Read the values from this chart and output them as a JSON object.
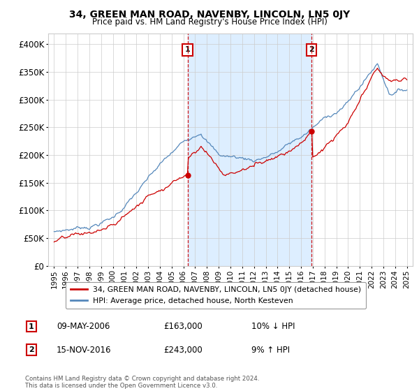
{
  "title": "34, GREEN MAN ROAD, NAVENBY, LINCOLN, LN5 0JY",
  "subtitle": "Price paid vs. HM Land Registry's House Price Index (HPI)",
  "legend_line1": "34, GREEN MAN ROAD, NAVENBY, LINCOLN, LN5 0JY (detached house)",
  "legend_line2": "HPI: Average price, detached house, North Kesteven",
  "annotation1_label": "1",
  "annotation1_date": "09-MAY-2006",
  "annotation1_price": "£163,000",
  "annotation1_hpi": "10% ↓ HPI",
  "annotation2_label": "2",
  "annotation2_date": "15-NOV-2016",
  "annotation2_price": "£243,000",
  "annotation2_hpi": "9% ↑ HPI",
  "footer": "Contains HM Land Registry data © Crown copyright and database right 2024.\nThis data is licensed under the Open Government Licence v3.0.",
  "red_color": "#cc0000",
  "blue_color": "#5588bb",
  "shade_color": "#ddeeff",
  "ylim": [
    0,
    420000
  ],
  "yticks": [
    0,
    50000,
    100000,
    150000,
    200000,
    250000,
    300000,
    350000,
    400000
  ],
  "sale1_x": 2006.35,
  "sale1_y": 163000,
  "sale2_x": 2016.88,
  "sale2_y": 243000,
  "xmin": 1994.5,
  "xmax": 2025.5
}
